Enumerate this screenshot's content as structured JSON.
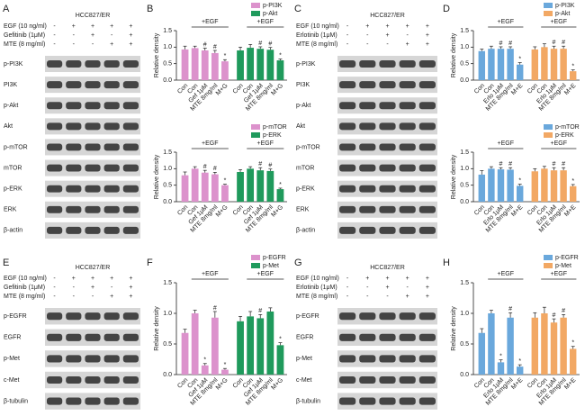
{
  "panels": [
    "A",
    "B",
    "C",
    "D",
    "E",
    "F",
    "G",
    "H"
  ],
  "blots": [
    {
      "title": "HCC827/ER",
      "treatments": [
        {
          "label": "EGF (10 ng/ml)",
          "signs": [
            "-",
            "+",
            "+",
            "+",
            "+"
          ]
        },
        {
          "label": "Gefitinib (1μM)",
          "signs": [
            "-",
            "-",
            "+",
            "-",
            "+"
          ]
        },
        {
          "label": "MTE (8 mg/ml)",
          "signs": [
            "-",
            "-",
            "-",
            "+",
            "+"
          ]
        }
      ],
      "proteins": [
        "p-PI3K",
        "PI3K",
        "p-Akt",
        "Akt",
        "p-mTOR",
        "mTOR",
        "p-ERK",
        "ERK",
        "β-actin"
      ]
    },
    {
      "title": "HCC827/ER",
      "treatments": [
        {
          "label": "EGF (10 ng/ml)",
          "signs": [
            "-",
            "+",
            "+",
            "+",
            "+"
          ]
        },
        {
          "label": "Erlotinib (1μM)",
          "signs": [
            "-",
            "-",
            "+",
            "-",
            "+"
          ]
        },
        {
          "label": "MTE (8 mg/ml)",
          "signs": [
            "-",
            "-",
            "-",
            "+",
            "+"
          ]
        }
      ],
      "proteins": [
        "p-PI3K",
        "PI3K",
        "p-Akt",
        "Akt",
        "p-mTOR",
        "mTOR",
        "p-ERK",
        "ERK",
        "β-actin"
      ]
    },
    {
      "title": "HCC827/ER",
      "treatments": [
        {
          "label": "EGF (10 ng/ml)",
          "signs": [
            "-",
            "+",
            "+",
            "+",
            "+"
          ]
        },
        {
          "label": "Gefitinib (1μM)",
          "signs": [
            "-",
            "-",
            "+",
            "-",
            "+"
          ]
        },
        {
          "label": "MTE (8 mg/ml)",
          "signs": [
            "-",
            "-",
            "-",
            "+",
            "+"
          ]
        }
      ],
      "proteins": [
        "p-EGFR",
        "EGFR",
        "p-Met",
        "c-Met",
        "β-tubulin"
      ]
    },
    {
      "title": "HCC827/ER",
      "treatments": [
        {
          "label": "EGF (10 ng/ml)",
          "signs": [
            "-",
            "+",
            "+",
            "+",
            "+"
          ]
        },
        {
          "label": "Erlotinib (1μM)",
          "signs": [
            "-",
            "-",
            "+",
            "-",
            "+"
          ]
        },
        {
          "label": "MTE (8 mg/ml)",
          "signs": [
            "-",
            "-",
            "-",
            "+",
            "+"
          ]
        }
      ],
      "proteins": [
        "p-EGFR",
        "EGFR",
        "p-Met",
        "c-Met",
        "β-tubulin"
      ]
    }
  ],
  "chart_data": [
    {
      "type": "bar",
      "ylabel": "Relative density",
      "annotation": "+EGF",
      "categories": [
        "Con",
        "Con",
        "Gef 1μM",
        "MTE 8mg/ml",
        "M+G"
      ],
      "ylim": [
        0,
        1.5
      ],
      "yticks": [
        {
          "value": 0,
          "label": "0.0"
        },
        0.5,
        {
          "value": 1,
          "label": "1.0"
        },
        1.5
      ],
      "series": [
        {
          "name": "p-PI3K",
          "color": "#dc92cc",
          "values": [
            0.93,
            0.97,
            0.9,
            0.82,
            0.57
          ],
          "errors": [
            0.1,
            0.06,
            0.07,
            0.08,
            0.05
          ],
          "markers": [
            null,
            null,
            "#",
            "#",
            "*"
          ]
        },
        {
          "name": "p-Akt",
          "color": "#1f9a5c",
          "values": [
            0.9,
            0.98,
            0.95,
            0.92,
            0.6
          ],
          "errors": [
            0.1,
            0.1,
            0.06,
            0.07,
            0.04
          ],
          "markers": [
            null,
            null,
            "#",
            "#",
            "*"
          ]
        }
      ]
    },
    {
      "type": "bar",
      "ylabel": "Relative density",
      "annotation": "+EGF",
      "categories": [
        "Con",
        "Con",
        "Gef 1μM",
        "MTE 8mg/ml",
        "M+G"
      ],
      "ylim": [
        0,
        1.5
      ],
      "yticks": [
        {
          "value": 0,
          "label": "0.0"
        },
        0.5,
        {
          "value": 1,
          "label": "1.0"
        },
        1.5
      ],
      "series": [
        {
          "name": "p-mTOR",
          "color": "#dc92cc",
          "values": [
            0.8,
            1.0,
            0.88,
            0.83,
            0.5
          ],
          "errors": [
            0.1,
            0.06,
            0.07,
            0.06,
            0.03
          ],
          "markers": [
            null,
            null,
            "#",
            "#",
            "*"
          ]
        },
        {
          "name": "p-ERK",
          "color": "#1f9a5c",
          "values": [
            0.9,
            1.0,
            0.95,
            0.93,
            0.38
          ],
          "errors": [
            0.07,
            0.06,
            0.08,
            0.06,
            0.03
          ],
          "markers": [
            null,
            null,
            "#",
            "#",
            "*"
          ]
        }
      ]
    },
    {
      "type": "bar",
      "ylabel": "Relative density",
      "annotation": "+EGF",
      "categories": [
        "Con",
        "Con",
        "Erlo 1μM",
        "MTE 8mg/ml",
        "M+E"
      ],
      "ylim": [
        0,
        1.5
      ],
      "yticks": [
        {
          "value": 0,
          "label": "0.0"
        },
        0.5,
        {
          "value": 1,
          "label": "1.0"
        },
        1.5
      ],
      "series": [
        {
          "name": "p-PI3K",
          "color": "#6aa8dc",
          "values": [
            0.88,
            0.95,
            0.95,
            0.95,
            0.47
          ],
          "errors": [
            0.06,
            0.08,
            0.06,
            0.06,
            0.06
          ],
          "markers": [
            null,
            null,
            "#",
            "#",
            "*"
          ]
        },
        {
          "name": "p-Akt",
          "color": "#f2a864",
          "values": [
            0.93,
            1.0,
            0.95,
            0.95,
            0.27
          ],
          "errors": [
            0.08,
            0.1,
            0.08,
            0.08,
            0.04
          ],
          "markers": [
            null,
            null,
            "#",
            "#",
            "*"
          ]
        }
      ]
    },
    {
      "type": "bar",
      "ylabel": "Relative density",
      "annotation": "+EGF",
      "categories": [
        "Con",
        "Con",
        "Erlo 1μM",
        "MTE 8mg/ml",
        "M+E"
      ],
      "ylim": [
        0,
        1.5
      ],
      "yticks": [
        {
          "value": 0,
          "label": "0.0"
        },
        0.5,
        {
          "value": 1,
          "label": "1.0"
        },
        1.5
      ],
      "series": [
        {
          "name": "p-mTOR",
          "color": "#6aa8dc",
          "values": [
            0.82,
            1.0,
            0.98,
            0.97,
            0.48
          ],
          "errors": [
            0.12,
            0.06,
            0.05,
            0.06,
            0.05
          ],
          "markers": [
            null,
            null,
            "#",
            "#",
            "*"
          ]
        },
        {
          "name": "p-ERK",
          "color": "#f2a864",
          "values": [
            0.92,
            1.0,
            0.95,
            0.95,
            0.47
          ],
          "errors": [
            0.08,
            0.07,
            0.08,
            0.08,
            0.05
          ],
          "markers": [
            null,
            null,
            "#",
            "#",
            "*"
          ]
        }
      ]
    },
    {
      "type": "bar",
      "ylabel": "Relative density",
      "annotation": "+EGF",
      "categories": [
        "Con",
        "Con",
        "Gef 1μM",
        "MTE 8mg/ml",
        "M+G"
      ],
      "ylim": [
        0,
        1.5
      ],
      "yticks": [
        {
          "value": 0,
          "label": "0.0"
        },
        0.5,
        {
          "value": 1,
          "label": "1.0"
        },
        1.5
      ],
      "series": [
        {
          "name": "p-EGFR",
          "color": "#dc92cc",
          "values": [
            0.68,
            1.0,
            0.15,
            0.93,
            0.08
          ],
          "errors": [
            0.06,
            0.05,
            0.03,
            0.1,
            0.02
          ],
          "markers": [
            null,
            null,
            "*",
            "#",
            "*"
          ]
        },
        {
          "name": "p-Met",
          "color": "#1f9a5c",
          "values": [
            0.87,
            0.95,
            0.92,
            1.03,
            0.48
          ],
          "errors": [
            0.08,
            0.08,
            0.06,
            0.06,
            0.04
          ],
          "markers": [
            null,
            null,
            "#",
            null,
            "*"
          ]
        }
      ]
    },
    {
      "type": "bar",
      "ylabel": "Relative density",
      "annotation": "+EGF",
      "categories": [
        "Con",
        "Con",
        "Erlo 1μM",
        "MTE 8mg/ml",
        "M+E"
      ],
      "ylim": [
        0,
        1.5
      ],
      "yticks": [
        {
          "value": 0,
          "label": "0.0"
        },
        0.5,
        {
          "value": 1,
          "label": "1.0"
        },
        1.5
      ],
      "series": [
        {
          "name": "p-EGFR",
          "color": "#6aa8dc",
          "values": [
            0.68,
            1.0,
            0.2,
            0.93,
            0.13
          ],
          "errors": [
            0.07,
            0.05,
            0.04,
            0.08,
            0.03
          ],
          "markers": [
            null,
            null,
            "*",
            "#",
            "*"
          ]
        },
        {
          "name": "p-Met",
          "color": "#f2a864",
          "values": [
            0.93,
            1.0,
            0.85,
            0.93,
            0.42
          ],
          "errors": [
            0.08,
            0.1,
            0.06,
            0.05,
            0.04
          ],
          "markers": [
            null,
            null,
            "#",
            "#",
            "*"
          ]
        }
      ]
    }
  ]
}
